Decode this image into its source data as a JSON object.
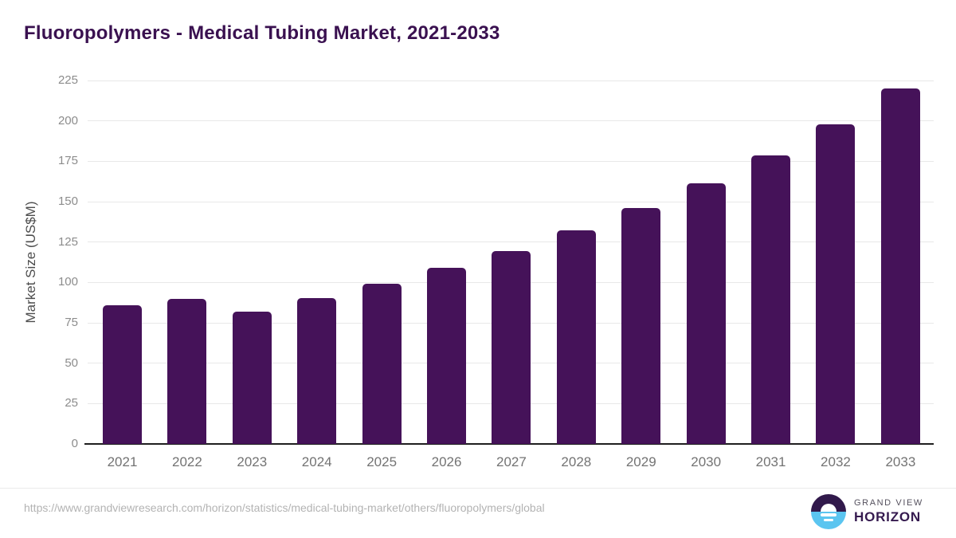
{
  "title": "Fluoropolymers - Medical Tubing Market, 2021-2033",
  "chart_data": {
    "type": "bar",
    "title": "Fluoropolymers - Medical Tubing Market, 2021-2033",
    "categories": [
      "2021",
      "2022",
      "2023",
      "2024",
      "2025",
      "2026",
      "2027",
      "2028",
      "2029",
      "2030",
      "2031",
      "2032",
      "2033"
    ],
    "values": [
      86,
      90,
      82,
      90.5,
      99,
      109,
      119.5,
      132,
      146,
      161.5,
      178.5,
      198,
      220
    ],
    "xlabel": "",
    "ylabel": "Market Size (US$M)",
    "ylim": [
      0,
      225
    ],
    "y_ticks": [
      0,
      25,
      50,
      75,
      100,
      125,
      150,
      175,
      200,
      225
    ],
    "grid": true,
    "legend": "none",
    "bar_color": "#451259"
  },
  "colors": {
    "title_text": "#3A1150",
    "bar_fill": "#451259",
    "gridline": "#e8e8e8",
    "baseline": "#1f1f1f",
    "y_tick_text": "#8c8c8c",
    "x_tick_text": "#737373",
    "axis_title_text": "#4d4d4d",
    "footer_text": "#b3b3b3",
    "logo_dark": "#31194B",
    "logo_blue": "#5BC5F0"
  },
  "footer": {
    "source_url": "https://www.grandviewresearch.com/horizon/statistics/medical-tubing-market/others/fluoropolymers/global",
    "logo": {
      "line1": "GRAND VIEW",
      "line2": "HORIZON"
    }
  }
}
